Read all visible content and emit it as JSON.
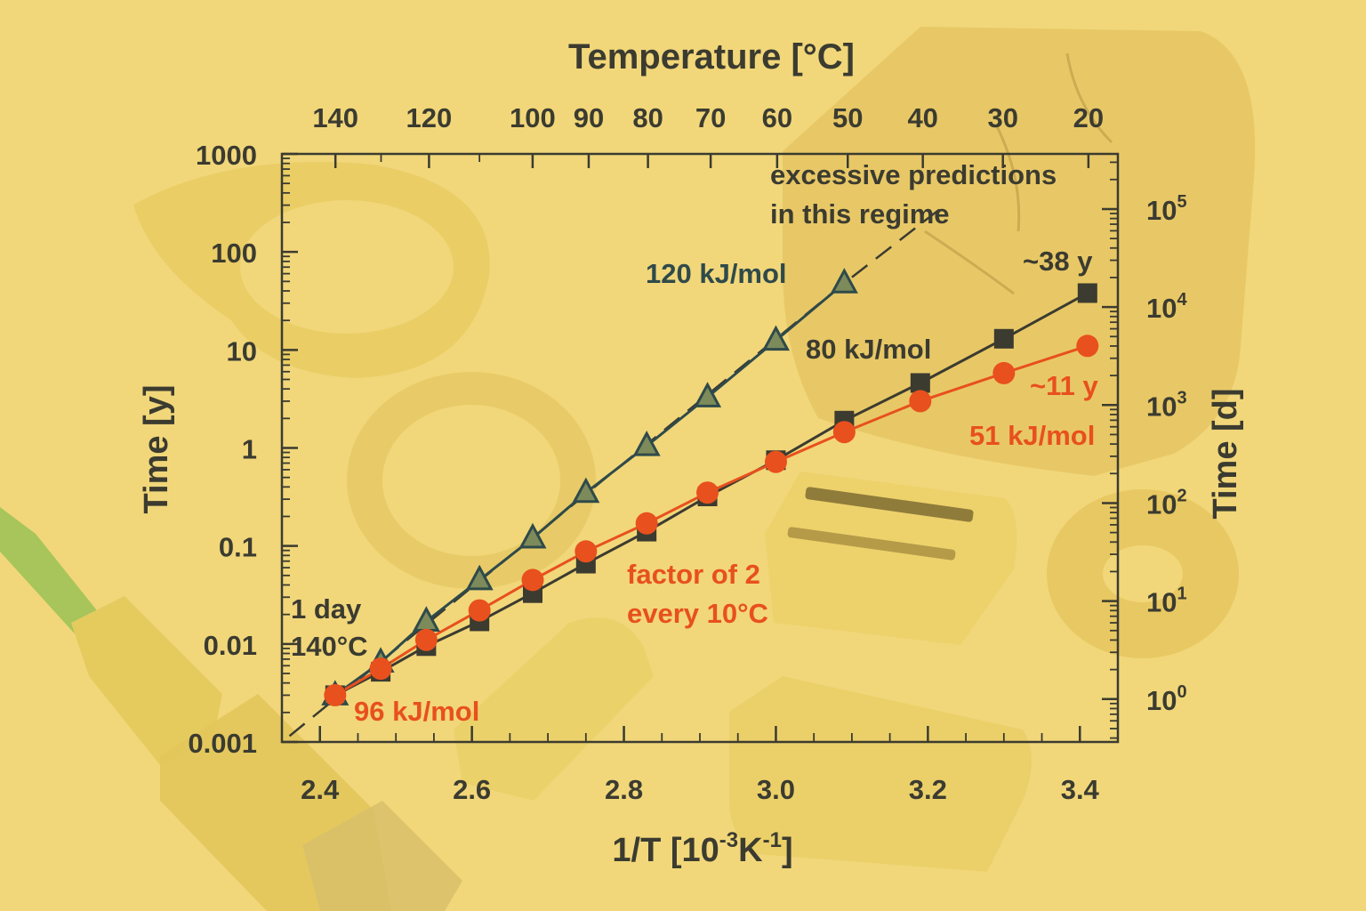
{
  "chart_data": {
    "type": "scatter",
    "title": "",
    "xlabel_main": "1/T [10",
    "xlabel_exp1": "-3",
    "xlabel_mid": "K",
    "xlabel_exp2": "-1",
    "xlabel_end": "]",
    "ylabel_left": "Time [y]",
    "ylabel_right": "Time [d]",
    "top_axis_label": "Temperature [°C]",
    "xlim": [
      2.35,
      3.45
    ],
    "ylim_log10": [
      -3,
      3
    ],
    "x_ticks": [
      {
        "v": 2.4,
        "label": "2.4"
      },
      {
        "v": 2.6,
        "label": "2.6"
      },
      {
        "v": 2.8,
        "label": "2.8"
      },
      {
        "v": 3.0,
        "label": "3.0"
      },
      {
        "v": 3.2,
        "label": "3.2"
      },
      {
        "v": 3.4,
        "label": "3.4"
      }
    ],
    "y_ticks": [
      {
        "v": 0.001,
        "label": "0.001"
      },
      {
        "v": 0.01,
        "label": "0.01"
      },
      {
        "v": 0.1,
        "label": "0.1"
      },
      {
        "v": 1,
        "label": "1"
      },
      {
        "v": 10,
        "label": "10"
      },
      {
        "v": 100,
        "label": "100"
      },
      {
        "v": 1000,
        "label": "1000"
      }
    ],
    "top_ticks": [
      {
        "c": 140,
        "label": "140"
      },
      {
        "c": 120,
        "label": "120"
      },
      {
        "c": 100,
        "label": "100"
      },
      {
        "c": 90,
        "label": "90"
      },
      {
        "c": 80,
        "label": "80"
      },
      {
        "c": 70,
        "label": "70"
      },
      {
        "c": 60,
        "label": "60"
      },
      {
        "c": 50,
        "label": "50"
      },
      {
        "c": 40,
        "label": "40"
      },
      {
        "c": 30,
        "label": "30"
      },
      {
        "c": 20,
        "label": "20"
      }
    ],
    "top_minor_ticks_c": [
      130,
      110
    ],
    "right_ticks": [
      {
        "days": 1,
        "base": "10",
        "exp": "0"
      },
      {
        "days": 10,
        "base": "10",
        "exp": "1"
      },
      {
        "days": 100,
        "base": "10",
        "exp": "2"
      },
      {
        "days": 1000,
        "base": "10",
        "exp": "3"
      },
      {
        "days": 10000,
        "base": "10",
        "exp": "4"
      },
      {
        "days": 100000,
        "base": "10",
        "exp": "5"
      }
    ],
    "series": [
      {
        "name": "120 kJ/mol",
        "marker": "triangle",
        "color": "#2f4a4a",
        "x": [
          2.42,
          2.48,
          2.54,
          2.61,
          2.68,
          2.75,
          2.83,
          2.91,
          3.0,
          3.09
        ],
        "y": [
          0.003,
          0.0065,
          0.017,
          0.045,
          0.12,
          0.35,
          1.05,
          3.3,
          12.5,
          48
        ]
      },
      {
        "name": "80 kJ/mol",
        "marker": "square",
        "color": "#3b3b30",
        "x": [
          2.42,
          2.48,
          2.54,
          2.61,
          2.68,
          2.75,
          2.83,
          2.91,
          3.0,
          3.09,
          3.19,
          3.3,
          3.41
        ],
        "y": [
          0.003,
          0.0052,
          0.0095,
          0.017,
          0.033,
          0.066,
          0.14,
          0.32,
          0.75,
          1.9,
          4.6,
          13,
          38
        ]
      },
      {
        "name": "51 kJ/mol",
        "marker": "circle",
        "color": "#e8501e",
        "x": [
          2.42,
          2.48,
          2.54,
          2.61,
          2.68,
          2.75,
          2.83,
          2.91,
          3.0,
          3.09,
          3.19,
          3.3,
          3.41
        ],
        "y": [
          0.003,
          0.0056,
          0.011,
          0.022,
          0.045,
          0.088,
          0.17,
          0.35,
          0.72,
          1.45,
          3.0,
          5.8,
          11
        ]
      }
    ],
    "dashed_extrapolation": {
      "x": [
        2.36,
        3.09,
        3.22
      ],
      "y": [
        0.00115,
        48,
        290
      ]
    },
    "annotations": {
      "a120": "120 kJ/mol",
      "a80": "80 kJ/mol",
      "a51": "51 kJ/mol",
      "a96": "96 kJ/mol",
      "y38": "~38 y",
      "y11": "~11 y",
      "excessive_1": "excessive predictions",
      "excessive_2": "in this regime",
      "factor_1": "factor of 2",
      "factor_2": "every 10°C",
      "day_1": "1 day",
      "day_2": "140°C"
    }
  },
  "colors": {
    "background": "#f1d77a",
    "axis": "#3b3b30",
    "dark_series": "#2f4a4a",
    "orange_series": "#e8501e"
  }
}
